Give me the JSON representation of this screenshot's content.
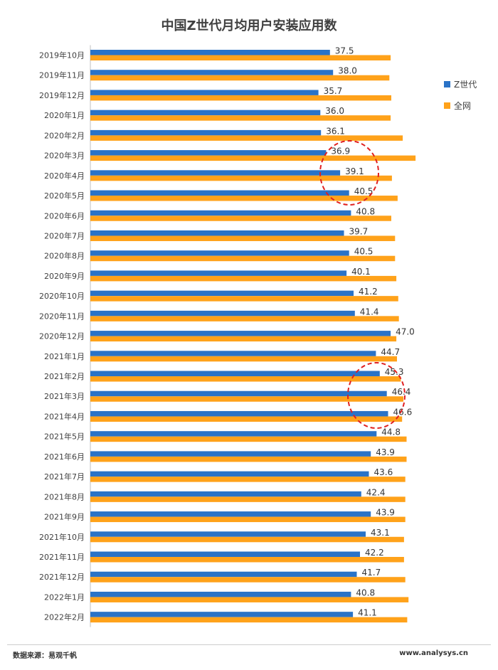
{
  "chart_data": {
    "type": "bar",
    "orientation": "horizontal",
    "title": "中国Z世代月均用户安装应用数",
    "categories": [
      "2019年10月",
      "2019年11月",
      "2019年12月",
      "2020年1月",
      "2020年2月",
      "2020年3月",
      "2020年4月",
      "2020年5月",
      "2020年6月",
      "2020年7月",
      "2020年8月",
      "2020年9月",
      "2020年10月",
      "2020年11月",
      "2020年12月",
      "2021年1月",
      "2021年2月",
      "2021年3月",
      "2021年4月",
      "2021年5月",
      "2021年6月",
      "2021年7月",
      "2021年8月",
      "2021年9月",
      "2021年10月",
      "2021年11月",
      "2021年12月",
      "2022年1月",
      "2022年2月"
    ],
    "series": [
      {
        "name": "Z世代",
        "color": "#2a73c7",
        "values": [
          37.5,
          38.0,
          35.7,
          36.0,
          36.1,
          36.9,
          39.1,
          40.5,
          40.8,
          39.7,
          40.5,
          40.1,
          41.2,
          41.4,
          47.0,
          44.7,
          45.3,
          46.4,
          46.6,
          44.8,
          43.9,
          43.6,
          42.4,
          43.9,
          43.1,
          42.2,
          41.7,
          40.8,
          41.1
        ],
        "data_labels": [
          "37.5",
          "38.0",
          "35.7",
          "36.0",
          "36.1",
          "36.9",
          "39.1",
          "40.5",
          "40.8",
          "39.7",
          "40.5",
          "40.1",
          "41.2",
          "41.4",
          "47.0",
          "44.7",
          "45.3",
          "46.4",
          "46.6",
          "44.8",
          "43.9",
          "43.6",
          "42.4",
          "43.9",
          "43.1",
          "42.2",
          "41.7",
          "40.8",
          "41.1"
        ]
      },
      {
        "name": "全网",
        "color": "#ffa21a",
        "values": [
          47.0,
          46.8,
          47.1,
          47.0,
          48.9,
          50.9,
          47.2,
          48.1,
          47.1,
          47.7,
          47.7,
          47.9,
          48.2,
          48.3,
          47.9,
          48.0,
          48.6,
          49.0,
          48.8,
          49.5,
          49.5,
          49.3,
          49.3,
          49.3,
          49.1,
          49.1,
          49.3,
          49.8,
          49.6
        ]
      }
    ],
    "xlim": [
      0,
      52
    ],
    "grid": false,
    "legend_position": "right",
    "annotations": [
      "red dashed circle around 2020年3月–2020年5月",
      "red dashed circle around 2021年2月–2021年4月"
    ]
  },
  "footer": {
    "source": "数据来源：易观千帆",
    "site": "www.analysys.cn"
  }
}
